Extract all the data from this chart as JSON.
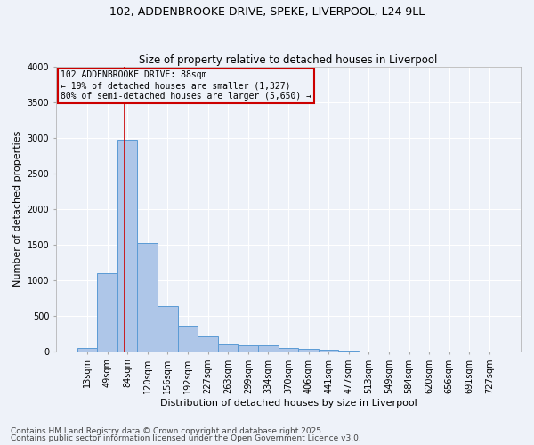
{
  "title_line1": "102, ADDENBROOKE DRIVE, SPEKE, LIVERPOOL, L24 9LL",
  "title_line2": "Size of property relative to detached houses in Liverpool",
  "xlabel": "Distribution of detached houses by size in Liverpool",
  "ylabel": "Number of detached properties",
  "bar_labels": [
    "13sqm",
    "49sqm",
    "84sqm",
    "120sqm",
    "156sqm",
    "192sqm",
    "227sqm",
    "263sqm",
    "299sqm",
    "334sqm",
    "370sqm",
    "406sqm",
    "441sqm",
    "477sqm",
    "513sqm",
    "549sqm",
    "584sqm",
    "620sqm",
    "656sqm",
    "691sqm",
    "727sqm"
  ],
  "bar_values": [
    50,
    1100,
    2970,
    1520,
    640,
    355,
    205,
    95,
    90,
    85,
    50,
    35,
    18,
    8,
    3,
    2,
    1,
    1,
    0,
    0,
    0
  ],
  "bar_color": "#aec6e8",
  "bar_edge_color": "#5b9bd5",
  "background_color": "#eef2f9",
  "grid_color": "#ffffff",
  "vline_x": 1.88,
  "vline_color": "#cc0000",
  "annotation_text": "102 ADDENBROOKE DRIVE: 88sqm\n← 19% of detached houses are smaller (1,327)\n80% of semi-detached houses are larger (5,650) →",
  "annotation_box_color": "#cc0000",
  "ylim": [
    0,
    4000
  ],
  "yticks": [
    0,
    500,
    1000,
    1500,
    2000,
    2500,
    3000,
    3500,
    4000
  ],
  "footer_line1": "Contains HM Land Registry data © Crown copyright and database right 2025.",
  "footer_line2": "Contains public sector information licensed under the Open Government Licence v3.0.",
  "title_fontsize": 9,
  "subtitle_fontsize": 8.5,
  "axis_label_fontsize": 8,
  "tick_fontsize": 7,
  "annotation_fontsize": 7,
  "footer_fontsize": 6.5
}
